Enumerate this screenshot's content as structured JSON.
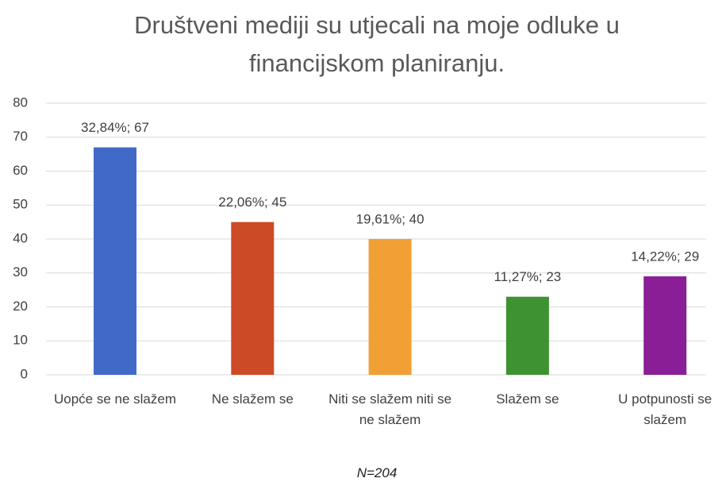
{
  "chart_data": {
    "type": "bar",
    "title": "Društveni mediji su utjecali na moje odluke u financijskom planiranju.",
    "categories": [
      "Uopće se ne slažem",
      "Ne slažem se",
      "Niti se slažem niti se ne slažem",
      "Slažem se",
      "U potpunosti se slažem"
    ],
    "values": [
      67,
      45,
      40,
      23,
      29
    ],
    "value_labels": [
      "32,84%; 67",
      "22,06%; 45",
      "19,61%; 40",
      "11,27%; 23",
      "14,22%; 29"
    ],
    "colors": [
      "#4169c8",
      "#cc4a26",
      "#f0a035",
      "#3f9232",
      "#8a1e96"
    ],
    "ylim": [
      0,
      80
    ],
    "yticks": [
      0,
      10,
      20,
      30,
      40,
      50,
      60,
      70,
      80
    ],
    "grid": true,
    "note": "N=204"
  }
}
